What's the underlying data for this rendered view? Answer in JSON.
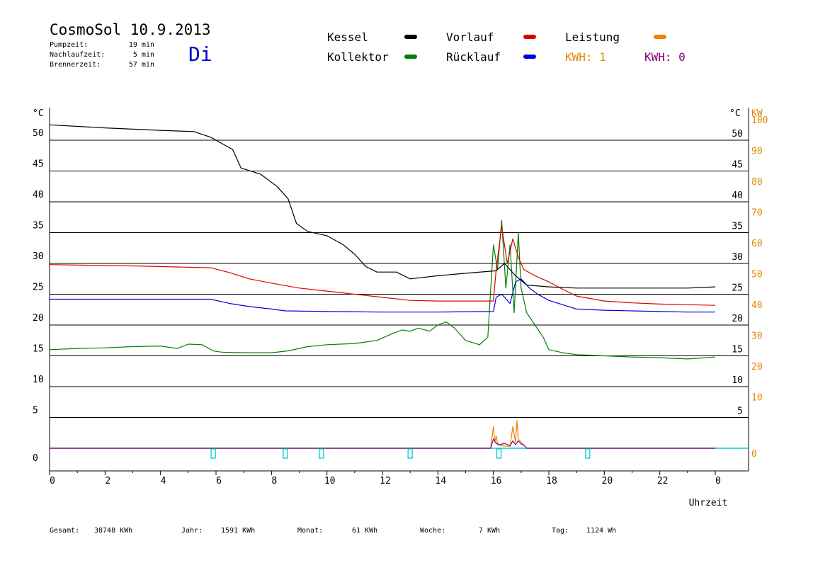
{
  "header": {
    "title": "CosmoSol 10.9.2013",
    "day": "Di",
    "info": [
      {
        "label": "Pumpzeit:",
        "value": "19 min"
      },
      {
        "label": "Nachlaufzeit:",
        "value": "5 min"
      },
      {
        "label": "Brennerzeit:",
        "value": "57 min"
      }
    ]
  },
  "legend": {
    "items": [
      {
        "label": "Kessel",
        "color": "#000000"
      },
      {
        "label": "Vorlauf",
        "color": "#dd0000"
      },
      {
        "label": "Leistung",
        "color": "#f08000"
      },
      {
        "label": "Kollektor",
        "color": "#008000"
      },
      {
        "label": "Rücklauf",
        "color": "#0000dd"
      }
    ],
    "kwh1": "KWH: 1",
    "kwh0": "KWH: 0",
    "kwh1_color": "#e08a00",
    "kwh0_color": "#800080"
  },
  "stats": [
    {
      "label": "Gesamt:",
      "value": "38748 KWh"
    },
    {
      "label": "Jahr:",
      "value": "1591 KWh"
    },
    {
      "label": "Monat:",
      "value": "61 KWh"
    },
    {
      "label": "Woche:",
      "value": "7 KWh"
    },
    {
      "label": "Tag:",
      "value": "1124 Wh"
    }
  ],
  "chart_data": {
    "type": "line",
    "xlabel": "Uhrzeit",
    "ylabel_left": "°C",
    "ylabel_right": "°C",
    "ylabel_power": "KW",
    "xlim": [
      0,
      24
    ],
    "ylim": [
      0,
      52
    ],
    "x_ticks": [
      "0",
      "2",
      "4",
      "6",
      "8",
      "10",
      "12",
      "14",
      "16",
      "18",
      "20",
      "22",
      "0"
    ],
    "y_ticks_left": [
      "0",
      "5",
      "10",
      "15",
      "20",
      "25",
      "30",
      "35",
      "40",
      "45",
      "50"
    ],
    "y_ticks_right": [
      "5",
      "10",
      "15",
      "20",
      "25",
      "30",
      "35",
      "40",
      "45",
      "50"
    ],
    "y_ticks_power": [
      "0",
      "10",
      "20",
      "30",
      "40",
      "50",
      "60",
      "70",
      "80",
      "90",
      "100"
    ],
    "series": [
      {
        "name": "Kessel",
        "color": "#000000",
        "x": [
          0,
          2,
          4,
          5.2,
          5.8,
          6.2,
          6.6,
          6.9,
          7.6,
          8.2,
          8.6,
          8.9,
          9.3,
          10,
          10.6,
          11,
          11.4,
          11.8,
          12.5,
          13,
          14,
          15,
          16.1,
          16.4,
          16.8,
          17.2,
          18,
          19,
          20,
          21,
          22,
          23,
          24
        ],
        "y": [
          52.5,
          52,
          51.6,
          51.4,
          50.5,
          49.5,
          48.5,
          45.5,
          44.5,
          42.5,
          40.5,
          36.5,
          35.2,
          34.5,
          33,
          31.5,
          29.5,
          28.6,
          28.6,
          27.5,
          28,
          28.4,
          28.8,
          30,
          28,
          26.5,
          26.2,
          26,
          26,
          26,
          26,
          26,
          26.2
        ]
      },
      {
        "name": "Vorlauf",
        "color": "#dd0000",
        "x": [
          0,
          3,
          5.8,
          6.5,
          7.2,
          8,
          9,
          10,
          11,
          12,
          13,
          14,
          15,
          16,
          16.1,
          16.3,
          16.5,
          16.7,
          16.9,
          17.1,
          17.5,
          18,
          18.5,
          19,
          20,
          21,
          22,
          23,
          24
        ],
        "y": [
          29.8,
          29.6,
          29.3,
          28.5,
          27.5,
          26.8,
          26,
          25.5,
          25,
          24.5,
          24,
          23.9,
          23.9,
          23.9,
          29,
          36,
          30,
          34,
          31,
          29,
          28,
          27,
          25.8,
          24.7,
          23.9,
          23.6,
          23.4,
          23.3,
          23.2
        ]
      },
      {
        "name": "Rücklauf",
        "color": "#0000dd",
        "x": [
          0,
          3,
          5.8,
          6.5,
          7.2,
          8,
          8.5,
          10,
          12,
          14,
          16,
          16.1,
          16.3,
          16.5,
          16.6,
          16.8,
          17,
          17.3,
          17.6,
          18,
          18.5,
          19,
          20,
          21,
          22,
          23,
          24
        ],
        "y": [
          24.2,
          24.2,
          24.2,
          23.5,
          23,
          22.6,
          22.3,
          22.2,
          22.1,
          22.1,
          22.2,
          24.5,
          25,
          24,
          23.5,
          27,
          27.5,
          26,
          25,
          24,
          23.3,
          22.6,
          22.4,
          22.3,
          22.2,
          22.1,
          22.1
        ]
      },
      {
        "name": "Kollektor",
        "color": "#008000",
        "x": [
          0,
          1,
          2,
          3,
          4,
          4.6,
          5,
          5.5,
          5.9,
          6.2,
          7,
          8,
          8.6,
          9.3,
          10,
          11,
          11.8,
          12.3,
          12.7,
          13,
          13.3,
          13.7,
          14,
          14.3,
          14.6,
          15,
          15.5,
          15.8,
          16,
          16.15,
          16.3,
          16.45,
          16.6,
          16.75,
          16.9,
          17,
          17.2,
          17.5,
          17.8,
          18,
          18.5,
          19,
          20,
          21,
          22,
          23,
          24
        ],
        "y": [
          16,
          16.2,
          16.3,
          16.5,
          16.6,
          16.2,
          16.9,
          16.8,
          15.8,
          15.6,
          15.5,
          15.5,
          15.8,
          16.5,
          16.8,
          17,
          17.5,
          18.5,
          19.2,
          19,
          19.5,
          19,
          20,
          20.5,
          19.5,
          17.5,
          16.8,
          18,
          33,
          29,
          37,
          26,
          33,
          22,
          35,
          26,
          22,
          20,
          18,
          16,
          15.5,
          15.2,
          15.0,
          14.8,
          14.7,
          14.5,
          14.8
        ]
      },
      {
        "name": "Leistung",
        "color": "#f08000",
        "x": [
          0,
          15.9,
          16,
          16.05,
          16.1,
          16.15,
          16.3,
          16.6,
          16.7,
          16.8,
          16.85,
          16.9,
          17,
          17.1,
          17.2,
          24
        ],
        "y": [
          0,
          0,
          3.5,
          1,
          2,
          0.8,
          0.4,
          0.3,
          3.5,
          1,
          4.5,
          1.5,
          1,
          0.5,
          0,
          0
        ]
      },
      {
        "name": "KWH",
        "color": "#800080",
        "x": [
          0,
          15.9,
          16,
          16.1,
          16.2,
          16.4,
          16.6,
          16.7,
          16.8,
          16.9,
          17,
          17.1,
          17.2,
          24
        ],
        "y": [
          0,
          0,
          1.5,
          0.8,
          0.5,
          0.8,
          0.4,
          1.2,
          0.6,
          1.2,
          0.7,
          0.5,
          0,
          0
        ]
      }
    ],
    "markers": {
      "color": "#00cccc",
      "x": [
        5.9,
        8.5,
        9.8,
        13,
        16.2,
        19.4
      ]
    }
  }
}
